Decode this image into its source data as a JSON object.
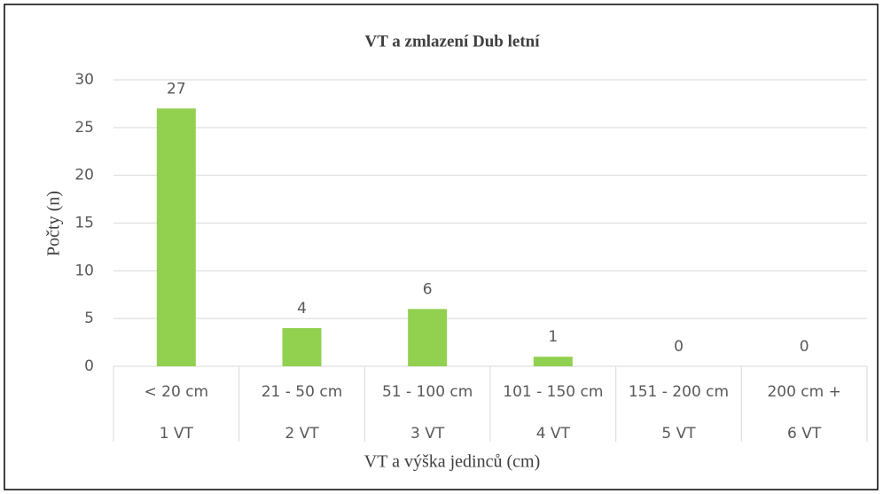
{
  "chart_data": {
    "type": "bar",
    "title": "VT a zmlazení Dub letní",
    "categories": [
      "< 20 cm",
      "21 - 50 cm",
      "51 - 100 cm",
      "101 - 150 cm",
      "151 - 200 cm",
      "200 cm +"
    ],
    "subcategories": [
      "1 VT",
      "2 VT",
      "3 VT",
      "4 VT",
      "5 VT",
      "6 VT"
    ],
    "values": [
      27,
      4,
      6,
      1,
      0,
      0
    ],
    "color": "#92d050",
    "xlabel": "VT a výška jedinců (cm)",
    "ylabel": "Počty (n)",
    "ylim": [
      0,
      30
    ],
    "yticks": [
      0,
      5,
      10,
      15,
      20,
      25,
      30
    ],
    "grid": true
  }
}
